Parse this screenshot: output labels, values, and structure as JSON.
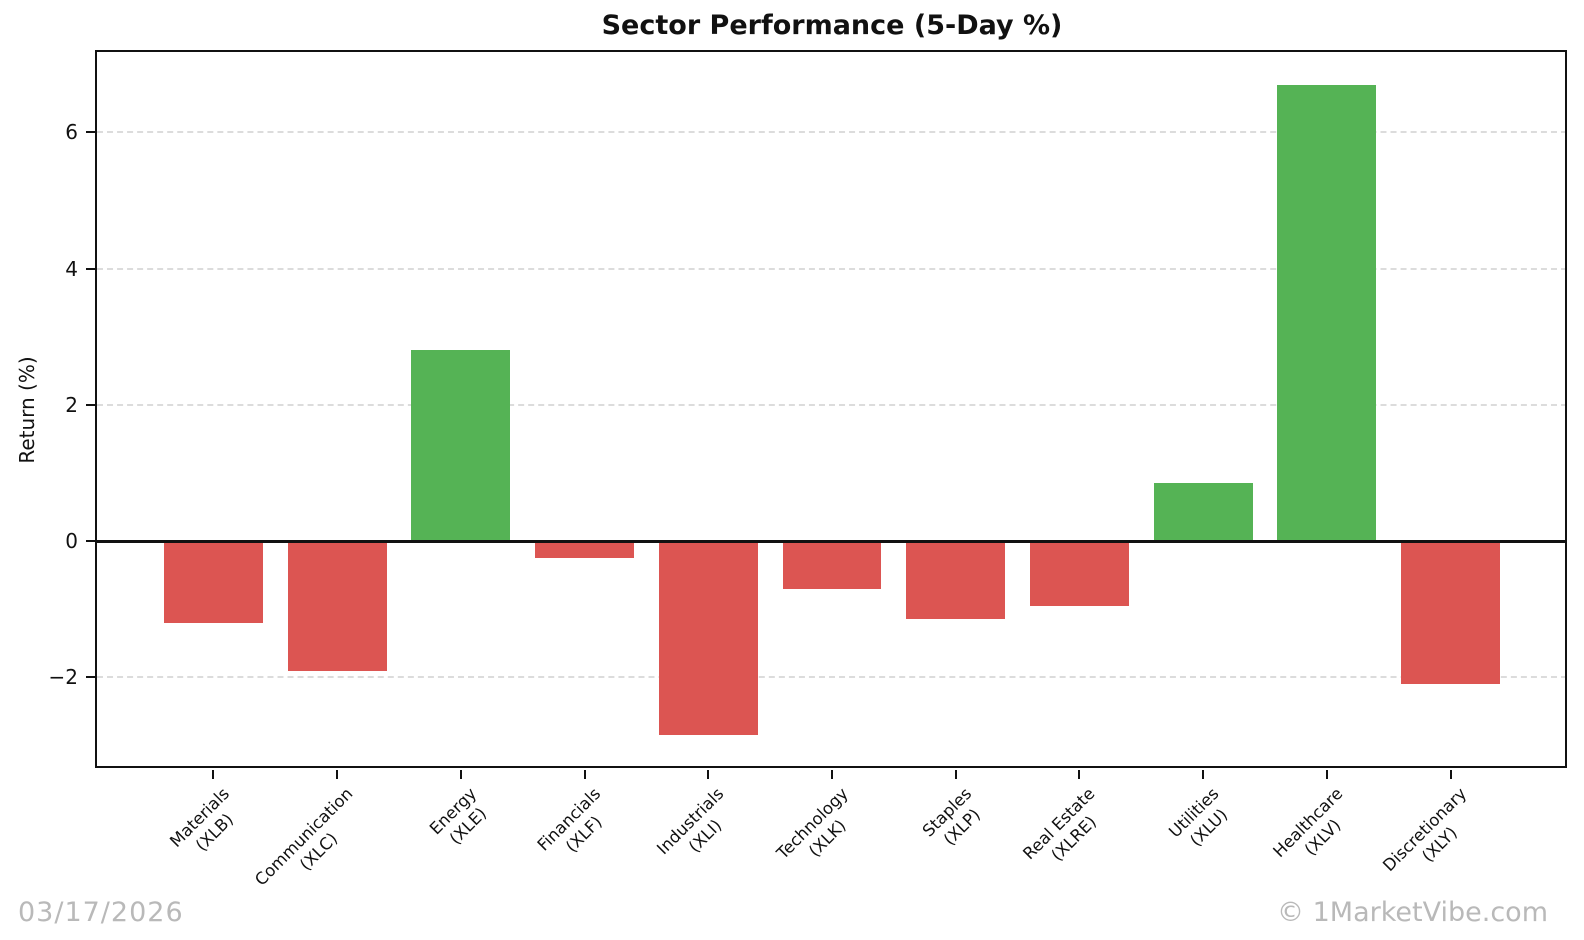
{
  "title": "Sector Performance (5-Day %)",
  "footer": {
    "date": "03/17/2026",
    "credit": "© 1MarketVibe.com"
  },
  "colors": {
    "positive": "#55b355",
    "negative": "#dc5552",
    "grid": "#dcdcdc",
    "axis": "#111111",
    "watermark": "#b9b9b9"
  },
  "chart_data": {
    "type": "bar",
    "title": "Sector Performance (5-Day %)",
    "xlabel": "",
    "ylabel": "Return (%)",
    "categories": [
      {
        "label": "Materials",
        "ticker": "(XLB)"
      },
      {
        "label": "Communication",
        "ticker": "(XLC)"
      },
      {
        "label": "Energy",
        "ticker": "(XLE)"
      },
      {
        "label": "Financials",
        "ticker": "(XLF)"
      },
      {
        "label": "Industrials",
        "ticker": "(XLI)"
      },
      {
        "label": "Technology",
        "ticker": "(XLK)"
      },
      {
        "label": "Staples",
        "ticker": "(XLP)"
      },
      {
        "label": "Real Estate",
        "ticker": "(XLRE)"
      },
      {
        "label": "Utilities",
        "ticker": "(XLU)"
      },
      {
        "label": "Healthcare",
        "ticker": "(XLV)"
      },
      {
        "label": "Discretionary",
        "ticker": "(XLY)"
      }
    ],
    "values": [
      -1.2,
      -1.9,
      2.8,
      -0.25,
      -2.85,
      -0.7,
      -1.15,
      -0.95,
      0.85,
      6.7,
      -2.1
    ],
    "bar_colors_rule": "green if value >= 0 else red",
    "yticks": [
      -2,
      0,
      2,
      4,
      6
    ],
    "ylim": [
      -3.33,
      7.18
    ],
    "xlim": [
      -0.94,
      10.94
    ],
    "bar_width": 0.8,
    "grid": "horizontal dashed",
    "zero_line": true,
    "legend": "none"
  }
}
